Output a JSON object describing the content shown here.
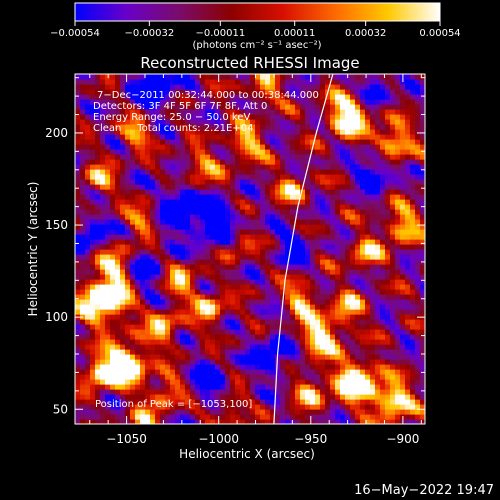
{
  "chart_data": {
    "type": "heatmap",
    "title": "Reconstructed RHESSI Image",
    "xlabel": "Heliocentric X (arcsec)",
    "ylabel": "Heliocentric Y (arcsec)",
    "xlim": [
      -1078,
      -888
    ],
    "ylim": [
      42,
      232
    ],
    "x_ticks": [
      -1050,
      -1000,
      -950,
      -900
    ],
    "x_tick_labels": [
      "−1050",
      "−1000",
      "−950",
      "−900"
    ],
    "y_ticks": [
      50,
      100,
      150,
      200
    ],
    "y_tick_labels": [
      "50",
      "100",
      "150",
      "200"
    ],
    "colorbar": {
      "range": [
        -0.00054,
        0.00054
      ],
      "ticks": [
        -0.00054,
        -0.00032,
        -0.00011,
        0.00011,
        0.00032,
        0.00054
      ],
      "tick_labels": [
        "−0.00054",
        "−0.00032",
        "−0.00011",
        "0.00011",
        "0.00032",
        "0.00054"
      ],
      "unit_label": "(photons cm⁻² s⁻¹ asec⁻²)",
      "colormap": [
        "#0000ff",
        "#6a00c8",
        "#7a0c6a",
        "#8c0000",
        "#d81000",
        "#ff6a00",
        "#ffc800",
        "#ffffff"
      ]
    },
    "hotspots": [
      {
        "x": -1062,
        "y": 110,
        "amp": 1.0,
        "sigma": 9
      },
      {
        "x": -1050,
        "y": 75,
        "amp": 0.9,
        "sigma": 8
      },
      {
        "x": -1065,
        "y": 70,
        "amp": 0.7,
        "sigma": 6
      },
      {
        "x": -1055,
        "y": 130,
        "amp": 0.5,
        "sigma": 7
      },
      {
        "x": -1040,
        "y": 155,
        "amp": 0.5,
        "sigma": 6
      },
      {
        "x": -1045,
        "y": 200,
        "amp": 0.5,
        "sigma": 6
      },
      {
        "x": -1065,
        "y": 175,
        "amp": 0.5,
        "sigma": 6
      },
      {
        "x": -1030,
        "y": 95,
        "amp": 0.6,
        "sigma": 6
      },
      {
        "x": -1028,
        "y": 60,
        "amp": 0.5,
        "sigma": 6
      },
      {
        "x": -1020,
        "y": 120,
        "amp": 0.55,
        "sigma": 6
      },
      {
        "x": -1005,
        "y": 105,
        "amp": 0.6,
        "sigma": 6
      },
      {
        "x": -1010,
        "y": 180,
        "amp": 0.5,
        "sigma": 7
      },
      {
        "x": -985,
        "y": 195,
        "amp": 0.55,
        "sigma": 7
      },
      {
        "x": -990,
        "y": 140,
        "amp": 0.45,
        "sigma": 6
      },
      {
        "x": -960,
        "y": 170,
        "amp": 0.5,
        "sigma": 6
      },
      {
        "x": -955,
        "y": 110,
        "amp": 0.55,
        "sigma": 6
      },
      {
        "x": -945,
        "y": 90,
        "amp": 0.7,
        "sigma": 8
      },
      {
        "x": -950,
        "y": 60,
        "amp": 0.55,
        "sigma": 6
      },
      {
        "x": -925,
        "y": 65,
        "amp": 0.95,
        "sigma": 8
      },
      {
        "x": -905,
        "y": 55,
        "amp": 0.8,
        "sigma": 7
      },
      {
        "x": -930,
        "y": 210,
        "amp": 0.8,
        "sigma": 8
      },
      {
        "x": -905,
        "y": 195,
        "amp": 0.7,
        "sigma": 7
      },
      {
        "x": -900,
        "y": 150,
        "amp": 0.6,
        "sigma": 7
      },
      {
        "x": -920,
        "y": 135,
        "amp": 0.55,
        "sigma": 6
      },
      {
        "x": -930,
        "y": 105,
        "amp": 0.5,
        "sigma": 6
      },
      {
        "x": -1040,
        "y": 45,
        "amp": 0.4,
        "sigma": 6
      },
      {
        "x": -995,
        "y": 50,
        "amp": 0.4,
        "sigma": 6
      },
      {
        "x": -975,
        "y": 225,
        "amp": 0.5,
        "sigma": 6
      }
    ],
    "coldspots": [
      {
        "x": -1020,
        "y": 160,
        "amp": 0.55,
        "sigma": 10
      },
      {
        "x": -1035,
        "y": 225,
        "amp": 0.6,
        "sigma": 8
      },
      {
        "x": -1000,
        "y": 150,
        "amp": 0.5,
        "sigma": 9
      },
      {
        "x": -1040,
        "y": 125,
        "amp": 0.45,
        "sigma": 7
      },
      {
        "x": -1005,
        "y": 65,
        "amp": 0.5,
        "sigma": 7
      },
      {
        "x": -915,
        "y": 180,
        "amp": 0.55,
        "sigma": 7
      },
      {
        "x": -915,
        "y": 225,
        "amp": 0.5,
        "sigma": 6
      },
      {
        "x": -970,
        "y": 80,
        "amp": 0.5,
        "sigma": 8
      },
      {
        "x": -1070,
        "y": 145,
        "amp": 0.45,
        "sigma": 7
      },
      {
        "x": -960,
        "y": 140,
        "amp": 0.4,
        "sigma": 7
      }
    ],
    "limb_curve": [
      [
        -970,
        42
      ],
      [
        -968,
        80
      ],
      [
        -964,
        120
      ],
      [
        -957,
        160
      ],
      [
        -947,
        200
      ],
      [
        -938,
        232
      ]
    ],
    "info_lines": [
      "7−Dec−2011 00:32:44.000 to 00:38:44.000",
      "Detectors: 3F 4F 5F 6F 7F 8F, Att 0",
      "Energy Range: 25.0 − 50.0 keV",
      "Clean     Total counts: 2.21E+04"
    ],
    "peak_label": "Position of Peak = [−1053,100]"
  },
  "footer": {
    "timestamp": "16−May−2022 19:47"
  }
}
